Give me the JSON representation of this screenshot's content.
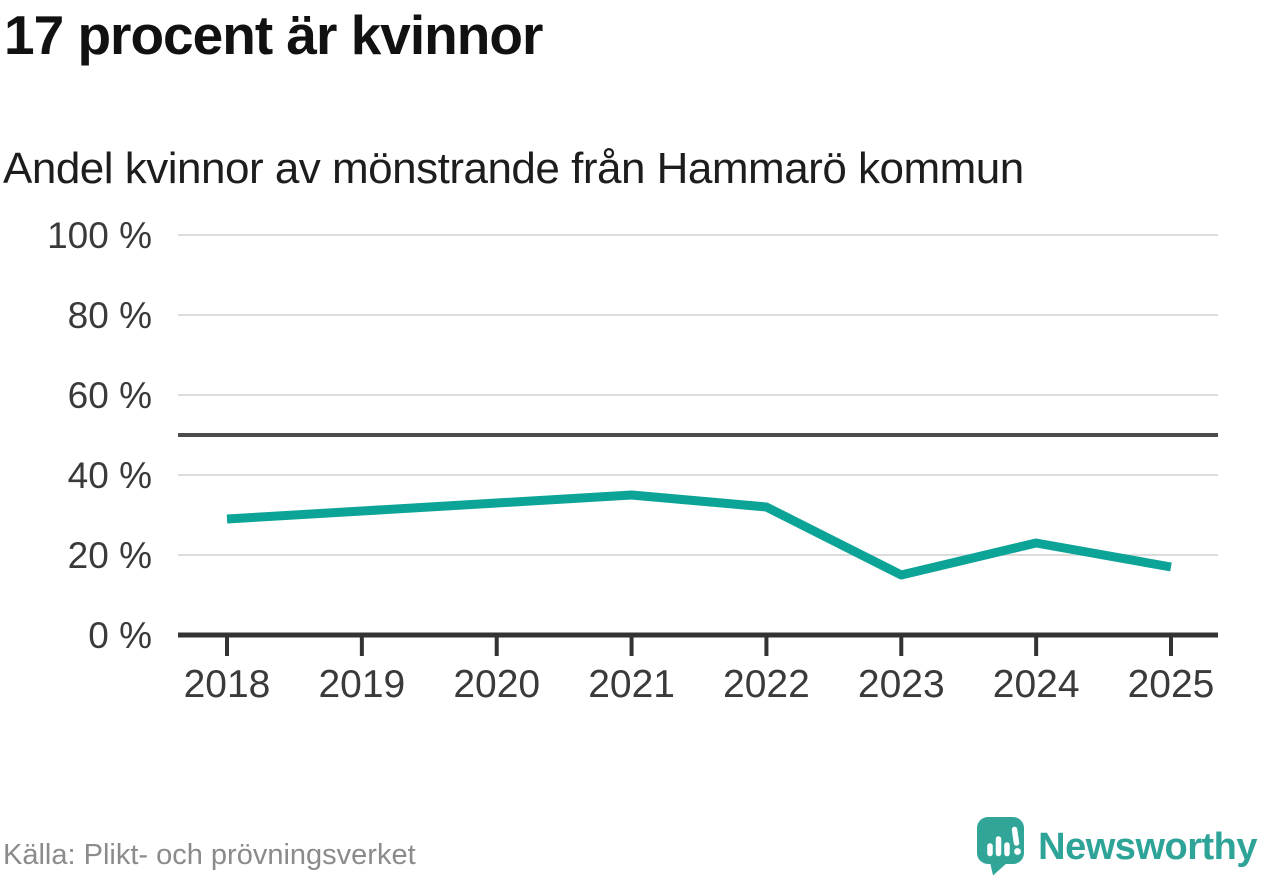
{
  "header": {
    "title": "17 procent är kvinnor",
    "subtitle": "Andel kvinnor av mönstrande från Hammarö kommun"
  },
  "chart_data": {
    "type": "line",
    "title": "17 procent är kvinnor",
    "subtitle": "Andel kvinnor av mönstrande från Hammarö kommun",
    "categories": [
      "2018",
      "2019",
      "2020",
      "2021",
      "2022",
      "2023",
      "2024",
      "2025"
    ],
    "series": [
      {
        "name": "Andel kvinnor av mönstrande",
        "values": [
          29,
          31,
          33,
          35,
          32,
          15,
          23,
          17
        ]
      }
    ],
    "unit": "%",
    "ylim": [
      0,
      100
    ],
    "yticks": [
      0,
      20,
      40,
      60,
      80,
      100
    ],
    "ytick_labels": [
      "0 %",
      "20 %",
      "40 %",
      "60 %",
      "80 %",
      "100 %"
    ],
    "reference_line": {
      "value": 50
    },
    "grid": true,
    "legend": "none"
  },
  "footer": {
    "source": "Källa: Plikt- och prövningsverket",
    "brand": "Newsworthy"
  },
  "colors": {
    "accent": "#0ca496",
    "brand_teal": "#31a698",
    "brand_text": "#2ea398",
    "grid": "#dcdcdc",
    "axis": "#333333",
    "reference": "#4d4d4d",
    "tick_text": "#3a3a3a",
    "title_text": "#111111",
    "muted": "#8b8b8b"
  }
}
